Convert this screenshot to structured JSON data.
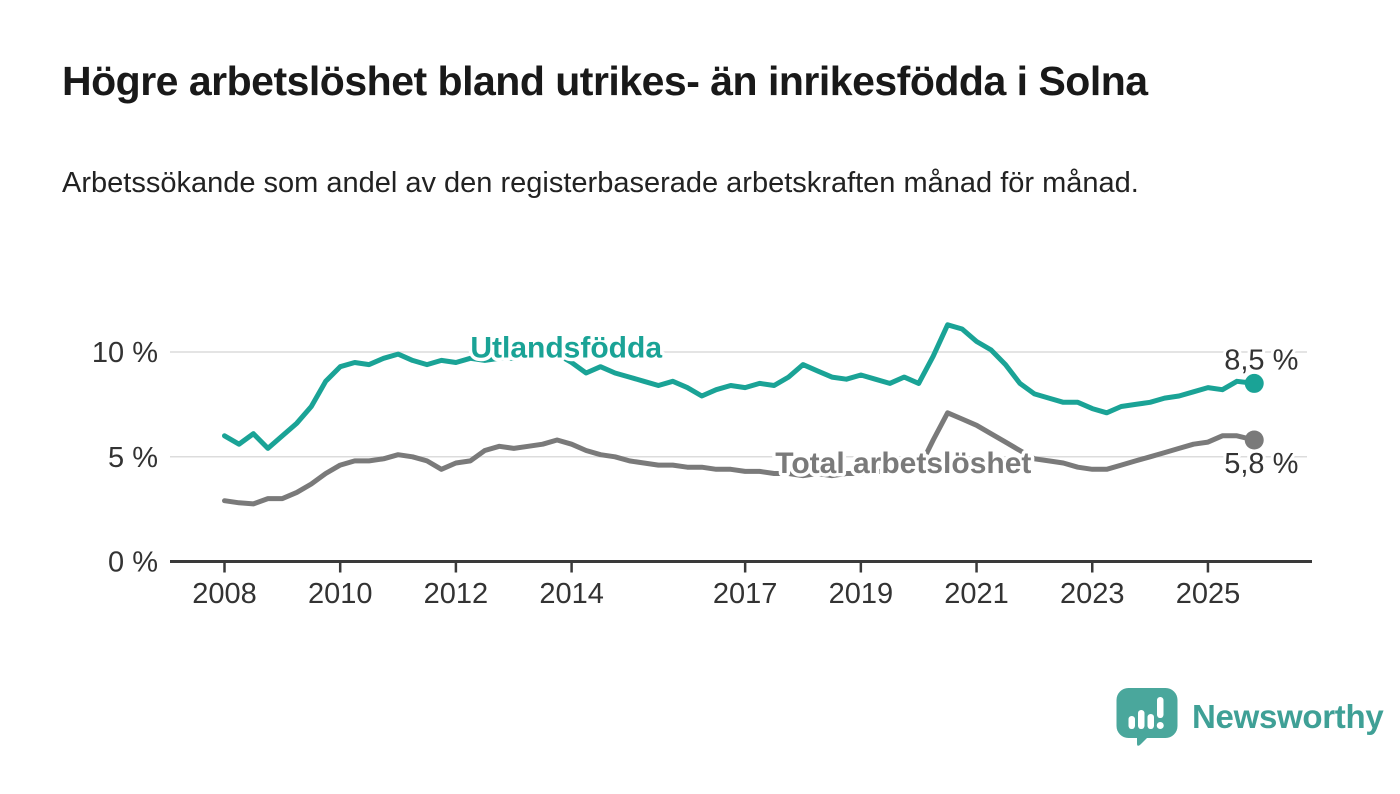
{
  "header": {
    "title": "Högre arbetslöshet bland utrikes- än inrikesfödda i Solna",
    "subtitle": "Arbetssökande som andel av den registerbaserade arbetskraften månad för månad."
  },
  "chart_data": {
    "type": "line",
    "title": "Högre arbetslöshet bland utrikes- än inrikesfödda i Solna",
    "xlabel": "",
    "ylabel": "",
    "unit": "%",
    "grid": "horizontal",
    "legend_position": "inline-labels",
    "xlim": [
      2007.5,
      2026.8
    ],
    "ylim": [
      0,
      12.5
    ],
    "x_ticks": [
      2008,
      2010,
      2012,
      2014,
      2017,
      2019,
      2021,
      2023,
      2025
    ],
    "y_ticks": [
      {
        "value": 0,
        "label": "0 %"
      },
      {
        "value": 5,
        "label": "5 %"
      },
      {
        "value": 10,
        "label": "10 %"
      }
    ],
    "x": [
      2008,
      2008.25,
      2008.5,
      2008.75,
      2009,
      2009.25,
      2009.5,
      2009.75,
      2010,
      2010.25,
      2010.5,
      2010.75,
      2011,
      2011.25,
      2011.5,
      2011.75,
      2012,
      2012.25,
      2012.5,
      2012.75,
      2013,
      2013.25,
      2013.5,
      2013.75,
      2014,
      2014.25,
      2014.5,
      2014.75,
      2015,
      2015.25,
      2015.5,
      2015.75,
      2016,
      2016.25,
      2016.5,
      2016.75,
      2017,
      2017.25,
      2017.5,
      2017.75,
      2018,
      2018.25,
      2018.5,
      2018.75,
      2019,
      2019.25,
      2019.5,
      2019.75,
      2020,
      2020.25,
      2020.5,
      2020.75,
      2021,
      2021.25,
      2021.5,
      2021.75,
      2022,
      2022.25,
      2022.5,
      2022.75,
      2023,
      2023.25,
      2023.5,
      2023.75,
      2024,
      2024.25,
      2024.5,
      2024.75,
      2025,
      2025.25,
      2025.5,
      2025.8
    ],
    "series": [
      {
        "name": "Utlandsfödda",
        "color": "#1aa396",
        "end_label": "8,5 %",
        "last_value": 8.5,
        "label_pos": {
          "year": 2012.25,
          "pct": 9.74
        },
        "values": [
          6.0,
          5.6,
          6.1,
          5.4,
          6.0,
          6.6,
          7.4,
          8.6,
          9.3,
          9.5,
          9.4,
          9.7,
          9.9,
          9.6,
          9.4,
          9.6,
          9.5,
          9.7,
          9.6,
          9.7,
          9.7,
          9.9,
          10.1,
          9.9,
          9.5,
          9.0,
          9.3,
          9.0,
          8.8,
          8.6,
          8.4,
          8.6,
          8.3,
          7.9,
          8.2,
          8.4,
          8.3,
          8.5,
          8.4,
          8.8,
          9.4,
          9.1,
          8.8,
          8.7,
          8.9,
          8.7,
          8.5,
          8.8,
          8.5,
          9.8,
          11.3,
          11.1,
          10.5,
          10.1,
          9.4,
          8.5,
          8.0,
          7.8,
          7.6,
          7.6,
          7.3,
          7.1,
          7.4,
          7.5,
          7.6,
          7.8,
          7.9,
          8.1,
          8.3,
          8.2,
          8.6,
          8.5
        ]
      },
      {
        "name": "Total arbetslöshet",
        "color": "#7a7a7a",
        "end_label": "5,8 %",
        "last_value": 5.8,
        "label_pos": {
          "year": 2017.52,
          "pct": 4.23
        },
        "values": [
          2.9,
          2.8,
          2.75,
          3.0,
          3.0,
          3.3,
          3.7,
          4.2,
          4.6,
          4.8,
          4.8,
          4.9,
          5.1,
          5.0,
          4.8,
          4.4,
          4.7,
          4.8,
          5.3,
          5.5,
          5.4,
          5.5,
          5.6,
          5.8,
          5.6,
          5.3,
          5.1,
          5.0,
          4.8,
          4.7,
          4.6,
          4.6,
          4.5,
          4.5,
          4.4,
          4.4,
          4.3,
          4.3,
          4.2,
          4.2,
          4.1,
          4.2,
          4.1,
          4.2,
          4.2,
          4.3,
          4.3,
          4.4,
          4.4,
          5.8,
          7.1,
          6.8,
          6.5,
          6.1,
          5.7,
          5.3,
          4.9,
          4.8,
          4.7,
          4.5,
          4.4,
          4.4,
          4.6,
          4.8,
          5.0,
          5.2,
          5.4,
          5.6,
          5.7,
          6.0,
          6.0,
          5.8
        ]
      }
    ],
    "colors": {
      "axis": "#3a3a3a",
      "gridline": "#dcdcdc",
      "tick_label": "#333333",
      "end_label_text": "#333333"
    }
  },
  "footer": {
    "brand": "Newsworthy",
    "logo_icon": "newsworthy-speech-bubble-bar-chart-icon",
    "brand_color": "#3fa096",
    "logo_fill": "#4aa79c"
  }
}
